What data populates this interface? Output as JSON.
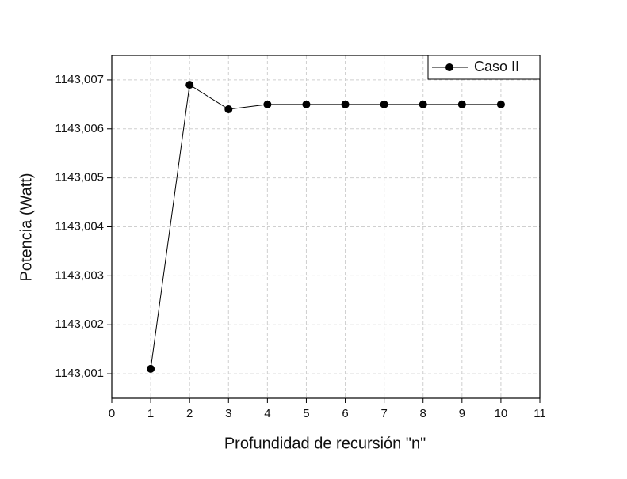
{
  "chart_data": {
    "type": "line",
    "x_label": "Profundidad de recursión \"n\"",
    "y_label": "Potencia (Watt)",
    "x": [
      1,
      2,
      3,
      4,
      5,
      6,
      7,
      8,
      9,
      10
    ],
    "series": [
      {
        "name": "Caso II",
        "color": "#000000",
        "values": [
          1143.0011,
          1143.0069,
          1143.0064,
          1143.0065,
          1143.0065,
          1143.0065,
          1143.0065,
          1143.0065,
          1143.0065,
          1143.0065
        ]
      }
    ],
    "xlim": [
      0,
      11
    ],
    "xticks": [
      0,
      1,
      2,
      3,
      4,
      5,
      6,
      7,
      8,
      9,
      10,
      11
    ],
    "ylim": [
      1143.0005,
      1143.0075
    ],
    "yticks": [
      {
        "value": 1143.001,
        "label": "1143,001"
      },
      {
        "value": 1143.002,
        "label": "1143,002"
      },
      {
        "value": 1143.003,
        "label": "1143,003"
      },
      {
        "value": 1143.004,
        "label": "1143,004"
      },
      {
        "value": 1143.005,
        "label": "1143,005"
      },
      {
        "value": 1143.006,
        "label": "1143,006"
      },
      {
        "value": 1143.007,
        "label": "1143,007"
      }
    ],
    "grid": true,
    "legend_position": "upper right"
  }
}
